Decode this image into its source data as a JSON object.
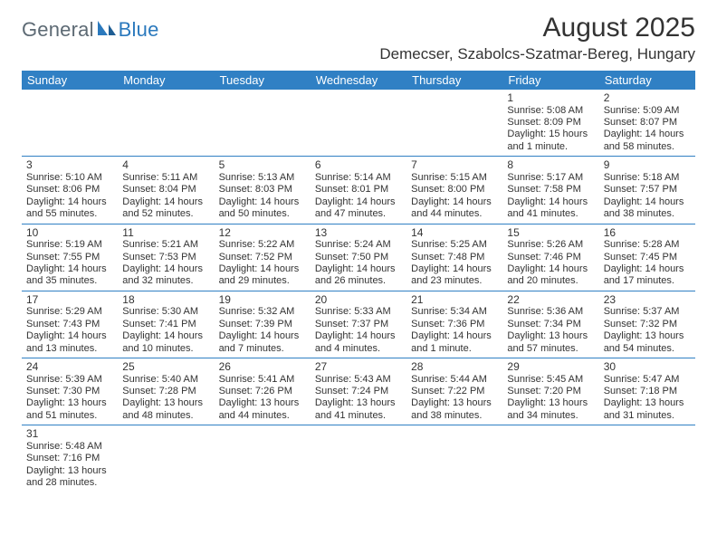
{
  "logo": {
    "text1": "General",
    "text2": "Blue"
  },
  "title": {
    "month": "August 2025",
    "location": "Demecser, Szabolcs-Szatmar-Bereg, Hungary"
  },
  "colors": {
    "header_bg": "#3080c4",
    "header_text": "#ffffff",
    "rule": "#3080c4",
    "body_text": "#333333",
    "logo_gray": "#5d6a74",
    "logo_blue": "#2b79bd",
    "page_bg": "#ffffff"
  },
  "weekdays": [
    "Sunday",
    "Monday",
    "Tuesday",
    "Wednesday",
    "Thursday",
    "Friday",
    "Saturday"
  ],
  "weeks": [
    [
      null,
      null,
      null,
      null,
      null,
      {
        "n": "1",
        "sr": "Sunrise: 5:08 AM",
        "ss": "Sunset: 8:09 PM",
        "d1": "Daylight: 15 hours",
        "d2": "and 1 minute."
      },
      {
        "n": "2",
        "sr": "Sunrise: 5:09 AM",
        "ss": "Sunset: 8:07 PM",
        "d1": "Daylight: 14 hours",
        "d2": "and 58 minutes."
      }
    ],
    [
      {
        "n": "3",
        "sr": "Sunrise: 5:10 AM",
        "ss": "Sunset: 8:06 PM",
        "d1": "Daylight: 14 hours",
        "d2": "and 55 minutes."
      },
      {
        "n": "4",
        "sr": "Sunrise: 5:11 AM",
        "ss": "Sunset: 8:04 PM",
        "d1": "Daylight: 14 hours",
        "d2": "and 52 minutes."
      },
      {
        "n": "5",
        "sr": "Sunrise: 5:13 AM",
        "ss": "Sunset: 8:03 PM",
        "d1": "Daylight: 14 hours",
        "d2": "and 50 minutes."
      },
      {
        "n": "6",
        "sr": "Sunrise: 5:14 AM",
        "ss": "Sunset: 8:01 PM",
        "d1": "Daylight: 14 hours",
        "d2": "and 47 minutes."
      },
      {
        "n": "7",
        "sr": "Sunrise: 5:15 AM",
        "ss": "Sunset: 8:00 PM",
        "d1": "Daylight: 14 hours",
        "d2": "and 44 minutes."
      },
      {
        "n": "8",
        "sr": "Sunrise: 5:17 AM",
        "ss": "Sunset: 7:58 PM",
        "d1": "Daylight: 14 hours",
        "d2": "and 41 minutes."
      },
      {
        "n": "9",
        "sr": "Sunrise: 5:18 AM",
        "ss": "Sunset: 7:57 PM",
        "d1": "Daylight: 14 hours",
        "d2": "and 38 minutes."
      }
    ],
    [
      {
        "n": "10",
        "sr": "Sunrise: 5:19 AM",
        "ss": "Sunset: 7:55 PM",
        "d1": "Daylight: 14 hours",
        "d2": "and 35 minutes."
      },
      {
        "n": "11",
        "sr": "Sunrise: 5:21 AM",
        "ss": "Sunset: 7:53 PM",
        "d1": "Daylight: 14 hours",
        "d2": "and 32 minutes."
      },
      {
        "n": "12",
        "sr": "Sunrise: 5:22 AM",
        "ss": "Sunset: 7:52 PM",
        "d1": "Daylight: 14 hours",
        "d2": "and 29 minutes."
      },
      {
        "n": "13",
        "sr": "Sunrise: 5:24 AM",
        "ss": "Sunset: 7:50 PM",
        "d1": "Daylight: 14 hours",
        "d2": "and 26 minutes."
      },
      {
        "n": "14",
        "sr": "Sunrise: 5:25 AM",
        "ss": "Sunset: 7:48 PM",
        "d1": "Daylight: 14 hours",
        "d2": "and 23 minutes."
      },
      {
        "n": "15",
        "sr": "Sunrise: 5:26 AM",
        "ss": "Sunset: 7:46 PM",
        "d1": "Daylight: 14 hours",
        "d2": "and 20 minutes."
      },
      {
        "n": "16",
        "sr": "Sunrise: 5:28 AM",
        "ss": "Sunset: 7:45 PM",
        "d1": "Daylight: 14 hours",
        "d2": "and 17 minutes."
      }
    ],
    [
      {
        "n": "17",
        "sr": "Sunrise: 5:29 AM",
        "ss": "Sunset: 7:43 PM",
        "d1": "Daylight: 14 hours",
        "d2": "and 13 minutes."
      },
      {
        "n": "18",
        "sr": "Sunrise: 5:30 AM",
        "ss": "Sunset: 7:41 PM",
        "d1": "Daylight: 14 hours",
        "d2": "and 10 minutes."
      },
      {
        "n": "19",
        "sr": "Sunrise: 5:32 AM",
        "ss": "Sunset: 7:39 PM",
        "d1": "Daylight: 14 hours",
        "d2": "and 7 minutes."
      },
      {
        "n": "20",
        "sr": "Sunrise: 5:33 AM",
        "ss": "Sunset: 7:37 PM",
        "d1": "Daylight: 14 hours",
        "d2": "and 4 minutes."
      },
      {
        "n": "21",
        "sr": "Sunrise: 5:34 AM",
        "ss": "Sunset: 7:36 PM",
        "d1": "Daylight: 14 hours",
        "d2": "and 1 minute."
      },
      {
        "n": "22",
        "sr": "Sunrise: 5:36 AM",
        "ss": "Sunset: 7:34 PM",
        "d1": "Daylight: 13 hours",
        "d2": "and 57 minutes."
      },
      {
        "n": "23",
        "sr": "Sunrise: 5:37 AM",
        "ss": "Sunset: 7:32 PM",
        "d1": "Daylight: 13 hours",
        "d2": "and 54 minutes."
      }
    ],
    [
      {
        "n": "24",
        "sr": "Sunrise: 5:39 AM",
        "ss": "Sunset: 7:30 PM",
        "d1": "Daylight: 13 hours",
        "d2": "and 51 minutes."
      },
      {
        "n": "25",
        "sr": "Sunrise: 5:40 AM",
        "ss": "Sunset: 7:28 PM",
        "d1": "Daylight: 13 hours",
        "d2": "and 48 minutes."
      },
      {
        "n": "26",
        "sr": "Sunrise: 5:41 AM",
        "ss": "Sunset: 7:26 PM",
        "d1": "Daylight: 13 hours",
        "d2": "and 44 minutes."
      },
      {
        "n": "27",
        "sr": "Sunrise: 5:43 AM",
        "ss": "Sunset: 7:24 PM",
        "d1": "Daylight: 13 hours",
        "d2": "and 41 minutes."
      },
      {
        "n": "28",
        "sr": "Sunrise: 5:44 AM",
        "ss": "Sunset: 7:22 PM",
        "d1": "Daylight: 13 hours",
        "d2": "and 38 minutes."
      },
      {
        "n": "29",
        "sr": "Sunrise: 5:45 AM",
        "ss": "Sunset: 7:20 PM",
        "d1": "Daylight: 13 hours",
        "d2": "and 34 minutes."
      },
      {
        "n": "30",
        "sr": "Sunrise: 5:47 AM",
        "ss": "Sunset: 7:18 PM",
        "d1": "Daylight: 13 hours",
        "d2": "and 31 minutes."
      }
    ],
    [
      {
        "n": "31",
        "sr": "Sunrise: 5:48 AM",
        "ss": "Sunset: 7:16 PM",
        "d1": "Daylight: 13 hours",
        "d2": "and 28 minutes."
      },
      null,
      null,
      null,
      null,
      null,
      null
    ]
  ]
}
